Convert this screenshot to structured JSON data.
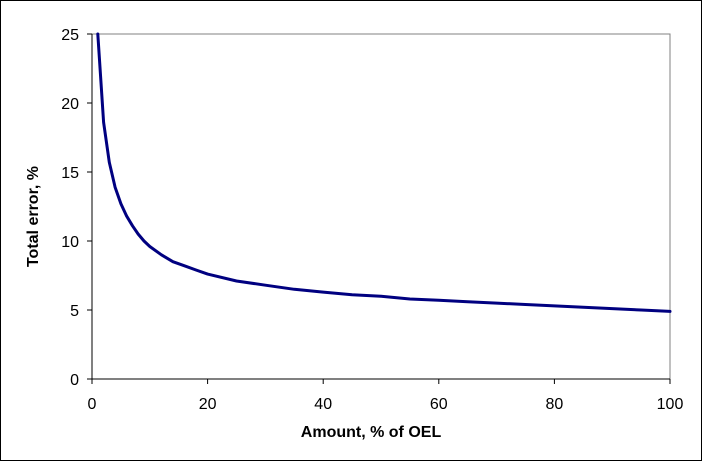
{
  "chart_data": {
    "type": "line",
    "title": "",
    "xlabel": "Amount, % of OEL",
    "ylabel": "Total error, %",
    "xlim": [
      0,
      100
    ],
    "ylim": [
      0,
      25
    ],
    "xticks": [
      0,
      20,
      40,
      60,
      80,
      100
    ],
    "yticks": [
      0,
      5,
      10,
      15,
      20,
      25
    ],
    "grid": false,
    "legend": "none",
    "colors": {
      "line": "#000080",
      "axis": "#000000",
      "background": "#ffffff"
    },
    "series": [
      {
        "x": [
          1,
          2,
          3,
          4,
          5,
          6,
          7,
          8,
          9,
          10,
          12,
          14,
          16,
          18,
          20,
          25,
          30,
          35,
          40,
          45,
          50,
          55,
          60,
          65,
          70,
          75,
          80,
          85,
          90,
          95,
          100
        ],
        "values": [
          25.0,
          18.6,
          15.7,
          13.9,
          12.7,
          11.8,
          11.1,
          10.5,
          10.0,
          9.6,
          9.0,
          8.5,
          8.2,
          7.9,
          7.6,
          7.1,
          6.8,
          6.5,
          6.3,
          6.1,
          6.0,
          5.8,
          5.7,
          5.6,
          5.5,
          5.4,
          5.3,
          5.2,
          5.1,
          5.0,
          4.9
        ]
      }
    ]
  }
}
